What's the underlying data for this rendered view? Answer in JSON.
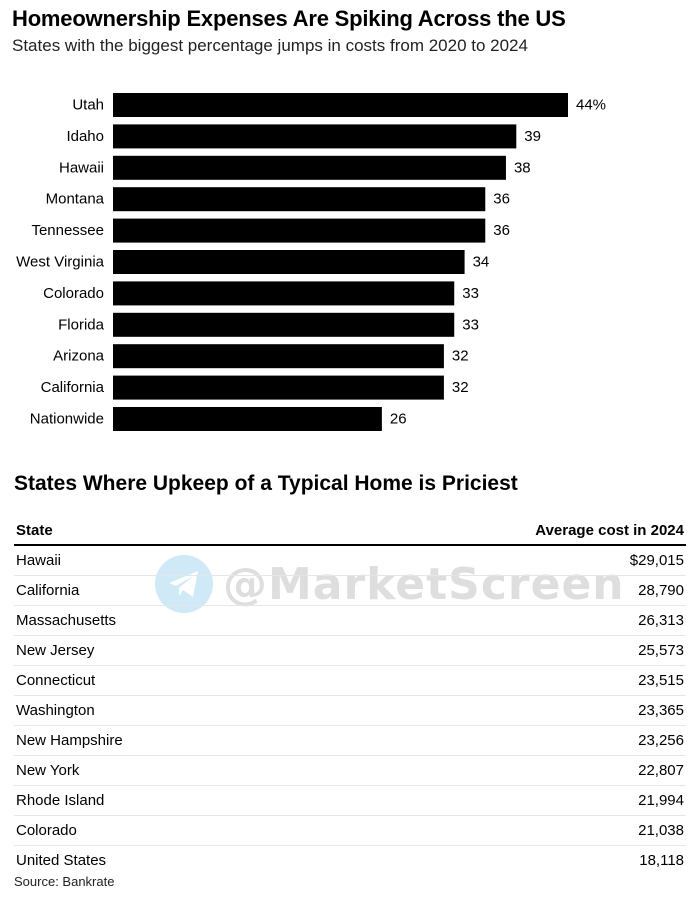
{
  "header": {
    "title": "Homeownership Expenses Are Spiking Across the US",
    "subtitle": "States with the biggest percentage jumps in costs from 2020 to 2024"
  },
  "chart_data": {
    "type": "bar",
    "orientation": "horizontal",
    "title": "Homeownership Expenses Are Spiking Across the US",
    "subtitle": "States with the biggest percentage jumps in costs from 2020 to 2024",
    "categories": [
      "Utah",
      "Idaho",
      "Hawaii",
      "Montana",
      "Tennessee",
      "West Virginia",
      "Colorado",
      "Florida",
      "Arizona",
      "California",
      "Nationwide"
    ],
    "values": [
      44,
      39,
      38,
      36,
      36,
      34,
      33,
      33,
      32,
      32,
      26
    ],
    "value_labels": [
      "44%",
      "39",
      "38",
      "36",
      "36",
      "34",
      "33",
      "33",
      "32",
      "32",
      "26"
    ],
    "xlabel": "",
    "ylabel": "",
    "xlim": [
      0,
      44
    ],
    "grid": false,
    "bar_color": "#000000"
  },
  "table": {
    "title": "States Where Upkeep of a Typical Home is Priciest",
    "columns": [
      "State",
      "Average cost in 2024"
    ],
    "rows": [
      [
        "Hawaii",
        "$29,015"
      ],
      [
        "California",
        "28,790"
      ],
      [
        "Massachusetts",
        "26,313"
      ],
      [
        "New Jersey",
        "25,573"
      ],
      [
        "Connecticut",
        "23,515"
      ],
      [
        "Washington",
        "23,365"
      ],
      [
        "New Hampshire",
        "23,256"
      ],
      [
        "New York",
        "22,807"
      ],
      [
        "Rhode Island",
        "21,994"
      ],
      [
        "Colorado",
        "21,038"
      ],
      [
        "United States",
        "18,118"
      ]
    ]
  },
  "watermark": {
    "text": "@MarketScreen",
    "icon": "telegram-icon",
    "icon_color": "#2a9fd8"
  },
  "source": "Source: Bankrate"
}
